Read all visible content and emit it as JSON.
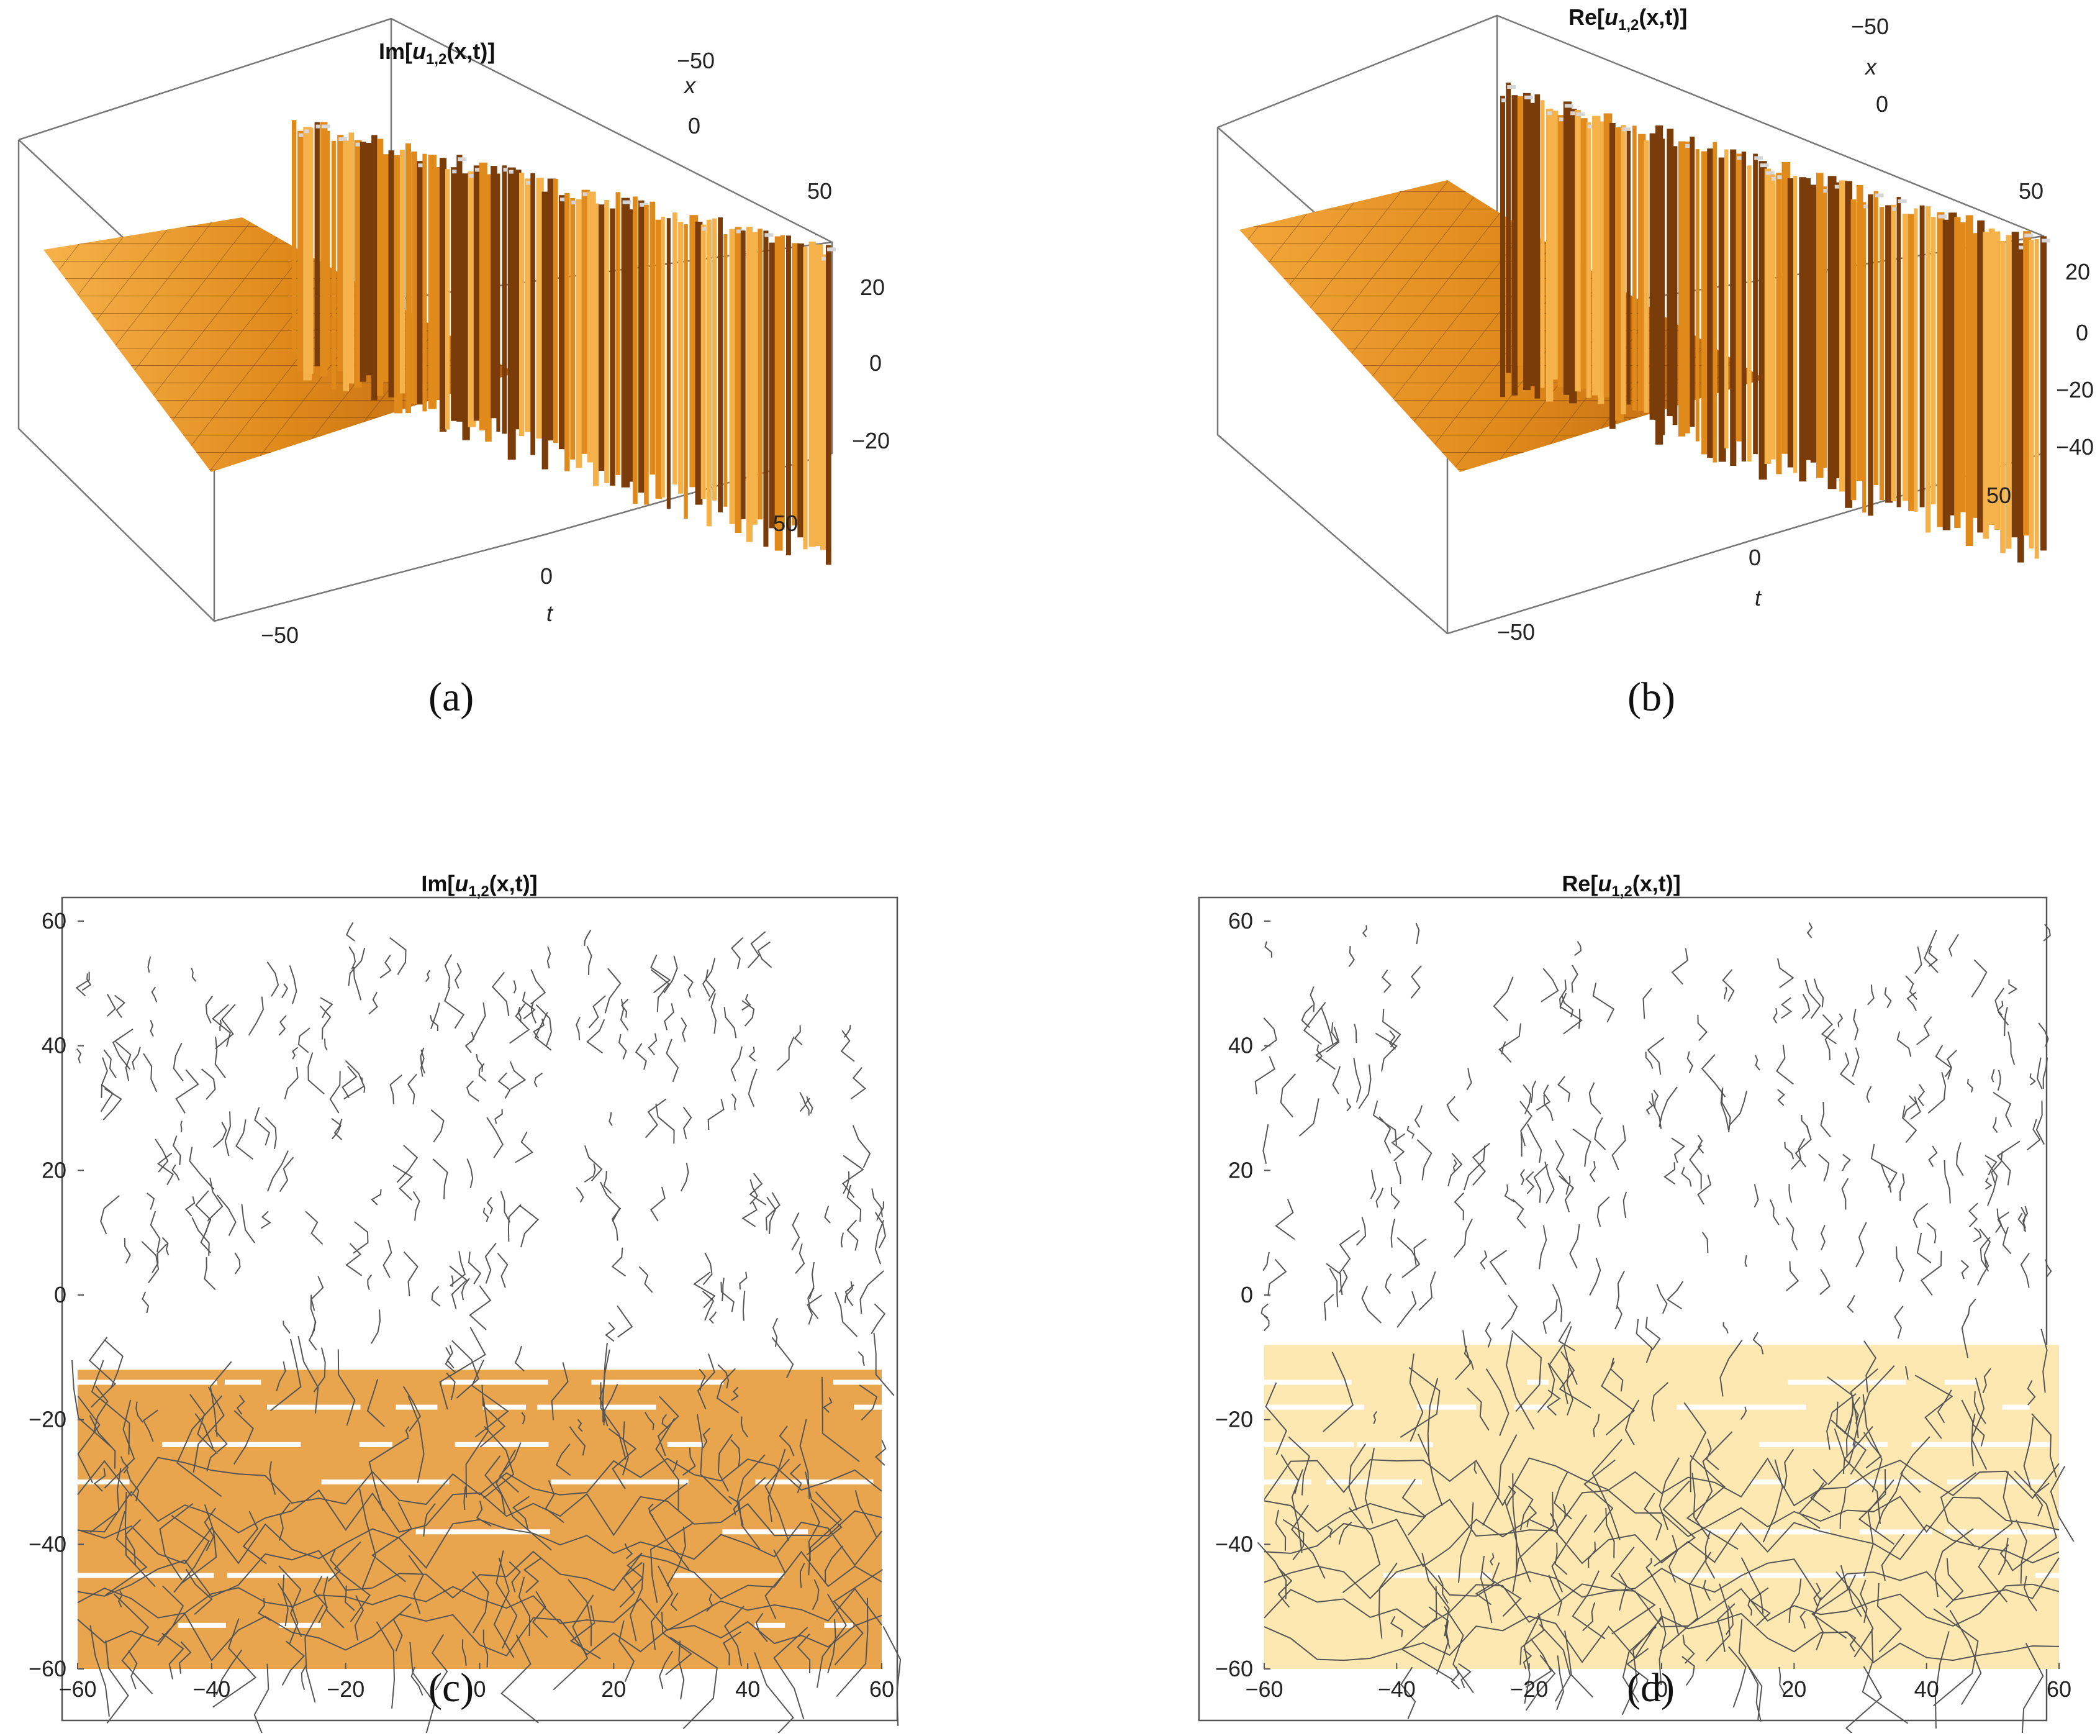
{
  "colors": {
    "surface_light": "#f6b24a",
    "surface_mid": "#e08a1c",
    "surface_dark": "#7a3c08",
    "density_fill_c": "#e8a54e",
    "density_fill_d": "#fde8b2",
    "contour_line": "#555555",
    "frame": "#777777",
    "highlight": "#f5d36a"
  },
  "chart_data": [
    {
      "panel": "a",
      "caption": "(a)",
      "type": "surface3d",
      "title": "Im[u1,2(x,t)]",
      "title_main": "Im[",
      "title_u": "u",
      "title_sub": "1,2",
      "title_rest": "(x,t)]",
      "x_axis": {
        "label": "x",
        "ticks": [
          "−50",
          "0",
          "50"
        ],
        "range": [
          -60,
          60
        ]
      },
      "t_axis": {
        "label": "t",
        "ticks": [
          "−50",
          "0",
          "50"
        ],
        "range": [
          -60,
          60
        ]
      },
      "z_axis": {
        "ticks": [
          "20",
          "0",
          "−20"
        ],
        "range": [
          -30,
          30
        ]
      },
      "description_data": {
        "flat_region_t": [
          -60,
          0
        ],
        "oscillating_region_t": [
          0,
          60
        ],
        "oscillation_amplitude": 30
      }
    },
    {
      "panel": "b",
      "caption": "(b)",
      "type": "surface3d",
      "title": "Re[u1,2(x,t)]",
      "title_main": "Re[",
      "title_u": "u",
      "title_sub": "1,2",
      "title_rest": "(x,t)]",
      "x_axis": {
        "label": "x",
        "ticks": [
          "−50",
          "0",
          "50"
        ],
        "range": [
          -60,
          60
        ]
      },
      "t_axis": {
        "label": "t",
        "ticks": [
          "−50",
          "0",
          "50"
        ],
        "range": [
          -60,
          60
        ]
      },
      "z_axis": {
        "ticks": [
          "20",
          "0",
          "−20",
          "−40"
        ],
        "range": [
          -45,
          30
        ]
      },
      "description_data": {
        "flat_region_t": [
          -60,
          0
        ],
        "oscillating_region_t": [
          0,
          60
        ],
        "oscillation_amplitude": 40
      }
    },
    {
      "panel": "c",
      "caption": "(c)",
      "type": "contour",
      "title": "Im[u1,2(x,t)]",
      "title_main": "Im[",
      "title_u": "u",
      "title_sub": "1,2",
      "title_rest": "(x,t)]",
      "x_ticks": [
        "−60",
        "−40",
        "−20",
        "0",
        "20",
        "40",
        "60"
      ],
      "y_ticks": [
        "60",
        "40",
        "20",
        "0",
        "−20",
        "−40",
        "−60"
      ],
      "xlim": [
        -60,
        60
      ],
      "ylim": [
        -60,
        60
      ],
      "filled_region_y": [
        -60,
        -12
      ],
      "white_gap_y": [
        -14,
        -18,
        -24,
        -30,
        -38,
        -45,
        -53
      ]
    },
    {
      "panel": "d",
      "caption": "(d)",
      "type": "contour",
      "title": "Re[u1,2(x,t)]",
      "title_main": "Re[",
      "title_u": "u",
      "title_sub": "1,2",
      "title_rest": "(x,t)]",
      "x_ticks": [
        "−60",
        "−40",
        "−20",
        "0",
        "20",
        "40",
        "60"
      ],
      "y_ticks": [
        "60",
        "40",
        "20",
        "0",
        "−20",
        "−40",
        "−60"
      ],
      "xlim": [
        -60,
        60
      ],
      "ylim": [
        -60,
        60
      ],
      "filled_region_y": [
        -60,
        -8
      ],
      "white_gap_y": [
        -14,
        -18,
        -24,
        -30,
        -38,
        -45
      ]
    }
  ]
}
